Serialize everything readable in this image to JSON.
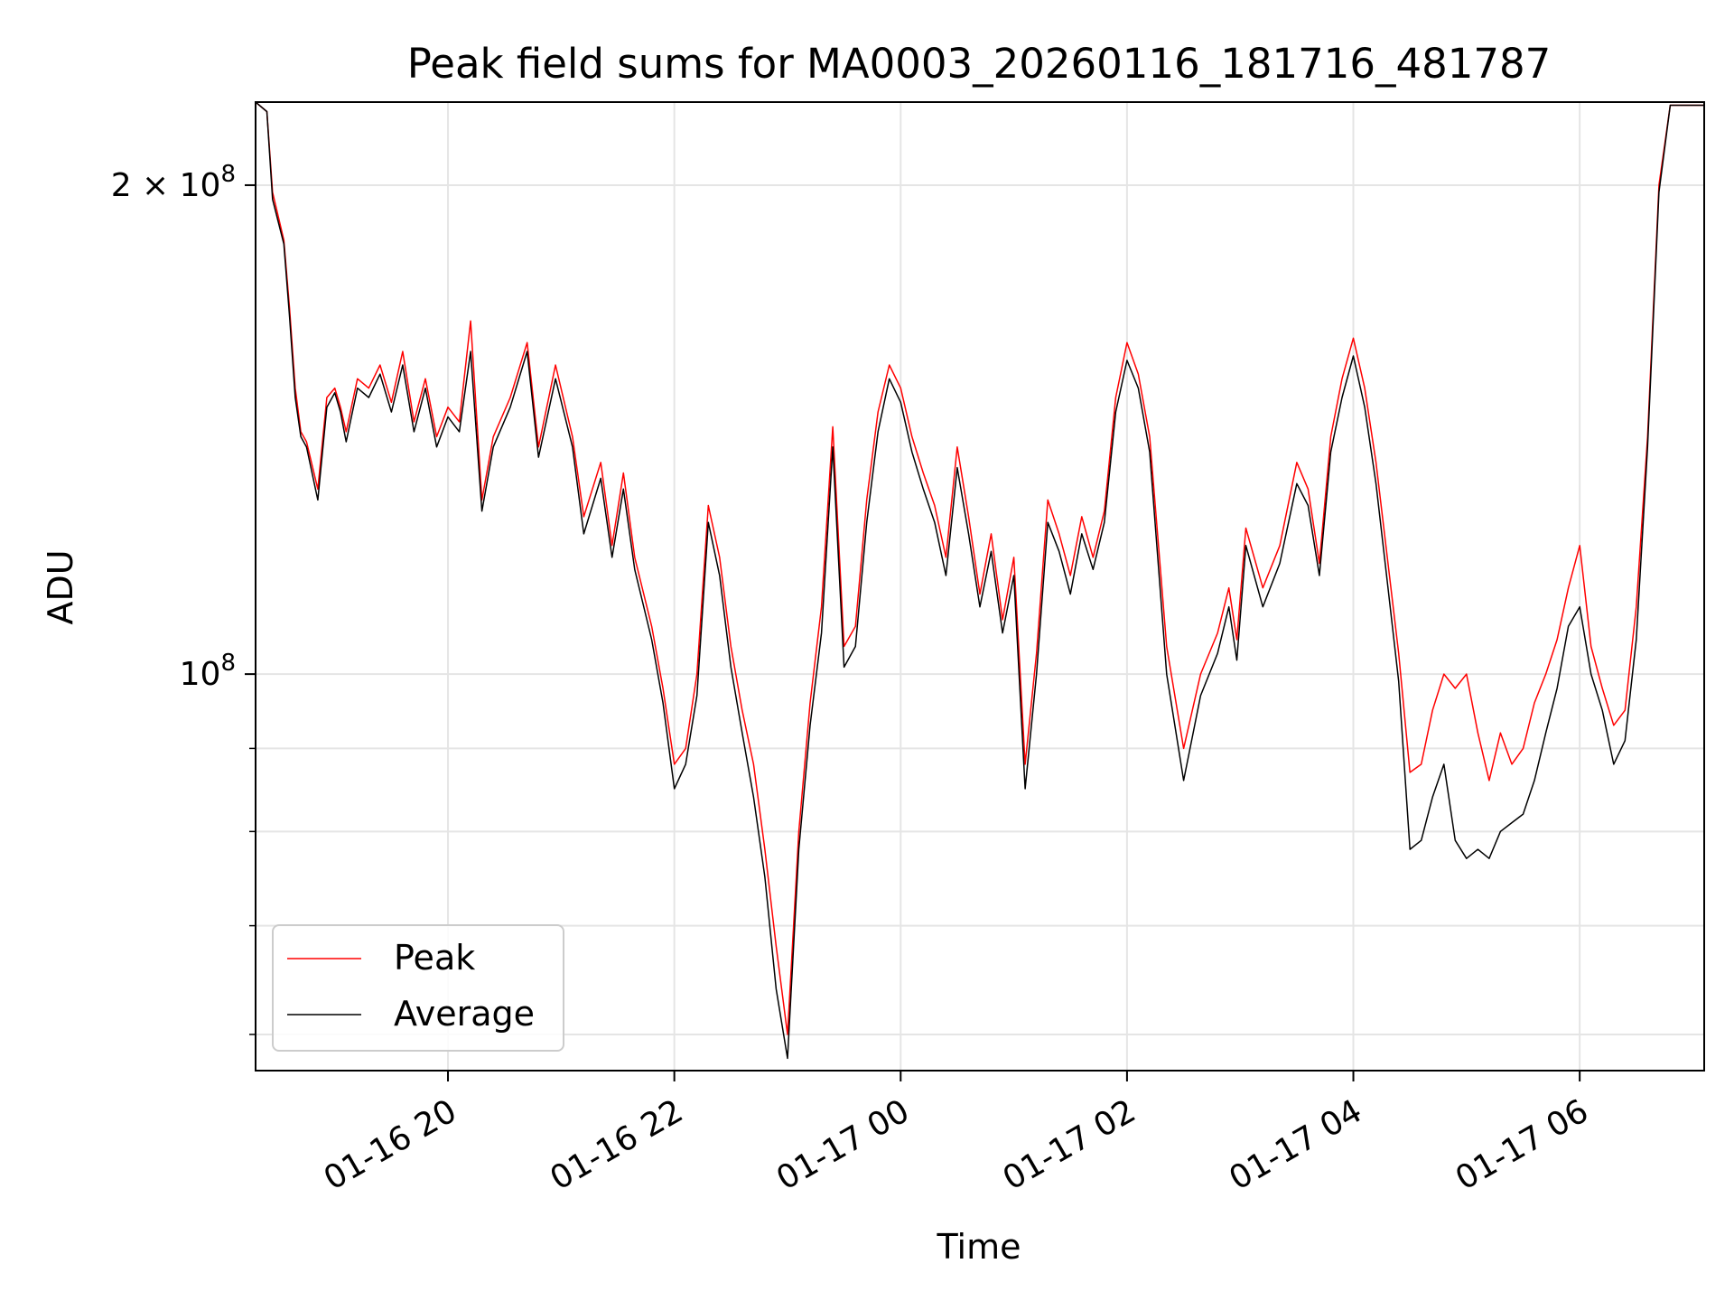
{
  "chart_data": {
    "type": "line",
    "title": "Peak field sums for MA0003_20260116_181716_481787",
    "xlabel": "Time",
    "ylabel": "ADU",
    "yscale": "log",
    "ylim": [
      57000000,
      225000000
    ],
    "xlim_hours": [
      18.3,
      7.1
    ],
    "x_start": "01-16 18:17",
    "x_end": "01-17 07:06",
    "x_ticks": [
      {
        "hour": 20,
        "label": "01-16 20"
      },
      {
        "hour": 22,
        "label": "01-16 22"
      },
      {
        "hour": 24,
        "label": "01-17 00"
      },
      {
        "hour": 26,
        "label": "01-17 02"
      },
      {
        "hour": 28,
        "label": "01-17 04"
      },
      {
        "hour": 30,
        "label": "01-17 06"
      }
    ],
    "y_ticks": [
      {
        "value": 100000000,
        "base": "10",
        "exp": "8",
        "prefix": ""
      },
      {
        "value": 200000000,
        "base": "10",
        "exp": "8",
        "prefix": "2 × "
      }
    ],
    "y_minor_ticks": [
      60000000,
      70000000,
      80000000,
      90000000
    ],
    "grid": true,
    "legend": {
      "placement": "lower-left",
      "entries": [
        "Peak",
        "Average"
      ]
    },
    "series": [
      {
        "name": "Peak",
        "color": "#ff0000",
        "x_hours": [
          18.3,
          18.4,
          18.45,
          18.55,
          18.6,
          18.65,
          18.7,
          18.75,
          18.85,
          18.93,
          19.0,
          19.05,
          19.1,
          19.2,
          19.3,
          19.4,
          19.5,
          19.6,
          19.7,
          19.8,
          19.9,
          20.0,
          20.1,
          20.2,
          20.3,
          20.4,
          20.55,
          20.7,
          20.8,
          20.95,
          21.1,
          21.2,
          21.35,
          21.45,
          21.55,
          21.65,
          21.8,
          21.9,
          22.0,
          22.1,
          22.2,
          22.3,
          22.4,
          22.5,
          22.6,
          22.7,
          22.8,
          22.9,
          23.0,
          23.1,
          23.2,
          23.3,
          23.4,
          23.5,
          23.6,
          23.7,
          23.8,
          23.9,
          24.0,
          24.1,
          24.2,
          24.3,
          24.4,
          24.5,
          24.6,
          24.7,
          24.8,
          24.9,
          25.0,
          25.1,
          25.2,
          25.3,
          25.4,
          25.5,
          25.6,
          25.7,
          25.8,
          25.9,
          26.0,
          26.1,
          26.2,
          26.35,
          26.5,
          26.65,
          26.8,
          26.9,
          26.97,
          27.05,
          27.2,
          27.35,
          27.5,
          27.6,
          27.7,
          27.8,
          27.9,
          28.0,
          28.1,
          28.2,
          28.3,
          28.4,
          28.5,
          28.6,
          28.7,
          28.8,
          28.9,
          29.0,
          29.1,
          29.2,
          29.3,
          29.4,
          29.5,
          29.6,
          29.7,
          29.8,
          29.9,
          30.0,
          30.1,
          30.2,
          30.3,
          30.4,
          30.5,
          30.6,
          30.7,
          30.8,
          31.1
        ],
        "values": [
          225000000,
          222000000,
          198000000,
          185000000,
          168000000,
          150000000,
          141000000,
          139000000,
          130000000,
          148000000,
          150000000,
          146000000,
          141000000,
          152000000,
          150000000,
          155000000,
          147000000,
          158000000,
          143000000,
          152000000,
          140000000,
          146000000,
          143000000,
          165000000,
          128000000,
          140000000,
          148000000,
          160000000,
          138000000,
          155000000,
          140000000,
          125000000,
          135000000,
          120000000,
          133000000,
          118000000,
          107000000,
          98000000,
          88000000,
          90000000,
          100000000,
          127000000,
          118000000,
          104000000,
          95000000,
          88000000,
          78000000,
          68000000,
          60000000,
          80000000,
          96000000,
          110000000,
          142000000,
          104000000,
          107000000,
          128000000,
          145000000,
          155000000,
          150000000,
          140000000,
          133000000,
          127000000,
          118000000,
          138000000,
          125000000,
          112000000,
          122000000,
          108000000,
          118000000,
          88000000,
          103000000,
          128000000,
          122000000,
          115000000,
          125000000,
          118000000,
          126000000,
          148000000,
          160000000,
          153000000,
          140000000,
          104000000,
          90000000,
          100000000,
          106000000,
          113000000,
          105000000,
          123000000,
          113000000,
          120000000,
          135000000,
          130000000,
          117000000,
          140000000,
          152000000,
          161000000,
          150000000,
          135000000,
          118000000,
          103000000,
          87000000,
          88000000,
          95000000,
          100000000,
          98000000,
          100000000,
          92000000,
          86000000,
          92000000,
          88000000,
          90000000,
          96000000,
          100000000,
          105000000,
          113000000,
          120000000,
          104000000,
          98000000,
          93000000,
          95000000,
          110000000,
          140000000,
          200000000,
          224000000,
          224000000
        ]
      },
      {
        "name": "Average",
        "color": "#000000",
        "x_hours": [
          18.3,
          18.4,
          18.45,
          18.55,
          18.6,
          18.65,
          18.7,
          18.75,
          18.85,
          18.93,
          19.0,
          19.05,
          19.1,
          19.2,
          19.3,
          19.4,
          19.5,
          19.6,
          19.7,
          19.8,
          19.9,
          20.0,
          20.1,
          20.2,
          20.3,
          20.4,
          20.55,
          20.7,
          20.8,
          20.95,
          21.1,
          21.2,
          21.35,
          21.45,
          21.55,
          21.65,
          21.8,
          21.9,
          22.0,
          22.1,
          22.2,
          22.3,
          22.4,
          22.5,
          22.6,
          22.7,
          22.8,
          22.9,
          23.0,
          23.1,
          23.2,
          23.3,
          23.4,
          23.5,
          23.6,
          23.7,
          23.8,
          23.9,
          24.0,
          24.1,
          24.2,
          24.3,
          24.4,
          24.5,
          24.6,
          24.7,
          24.8,
          24.9,
          25.0,
          25.1,
          25.2,
          25.3,
          25.4,
          25.5,
          25.6,
          25.7,
          25.8,
          25.9,
          26.0,
          26.1,
          26.2,
          26.35,
          26.5,
          26.65,
          26.8,
          26.9,
          26.97,
          27.05,
          27.2,
          27.35,
          27.5,
          27.6,
          27.7,
          27.8,
          27.9,
          28.0,
          28.1,
          28.2,
          28.3,
          28.4,
          28.5,
          28.6,
          28.7,
          28.8,
          28.9,
          29.0,
          29.1,
          29.2,
          29.3,
          29.4,
          29.5,
          29.6,
          29.7,
          29.8,
          29.9,
          30.0,
          30.1,
          30.2,
          30.3,
          30.4,
          30.5,
          30.6,
          30.7,
          30.8,
          31.1
        ],
        "values": [
          225000000,
          222000000,
          196000000,
          184000000,
          166000000,
          148000000,
          140000000,
          138000000,
          128000000,
          146000000,
          149000000,
          145000000,
          139000000,
          150000000,
          148000000,
          153000000,
          145000000,
          155000000,
          141000000,
          150000000,
          138000000,
          144000000,
          141000000,
          158000000,
          126000000,
          138000000,
          146000000,
          158000000,
          136000000,
          152000000,
          138000000,
          122000000,
          132000000,
          118000000,
          130000000,
          116000000,
          105000000,
          96000000,
          85000000,
          88000000,
          97000000,
          124000000,
          115000000,
          101000000,
          92000000,
          84000000,
          75000000,
          64000000,
          58000000,
          78000000,
          93000000,
          106000000,
          138000000,
          101000000,
          104000000,
          124000000,
          141000000,
          152000000,
          147000000,
          137000000,
          130000000,
          124000000,
          115000000,
          134000000,
          122000000,
          110000000,
          119000000,
          106000000,
          115000000,
          85000000,
          100000000,
          124000000,
          119000000,
          112000000,
          122000000,
          116000000,
          124000000,
          145000000,
          156000000,
          150000000,
          137000000,
          100000000,
          86000000,
          97000000,
          103000000,
          110000000,
          102000000,
          120000000,
          110000000,
          117000000,
          131000000,
          127000000,
          115000000,
          137000000,
          148000000,
          157000000,
          146000000,
          131000000,
          114000000,
          99000000,
          78000000,
          79000000,
          84000000,
          88000000,
          79000000,
          77000000,
          78000000,
          77000000,
          80000000,
          81000000,
          82000000,
          86000000,
          92000000,
          98000000,
          107000000,
          110000000,
          100000000,
          95000000,
          88000000,
          91000000,
          105000000,
          138000000,
          198000000,
          224000000,
          224000000
        ]
      }
    ]
  }
}
